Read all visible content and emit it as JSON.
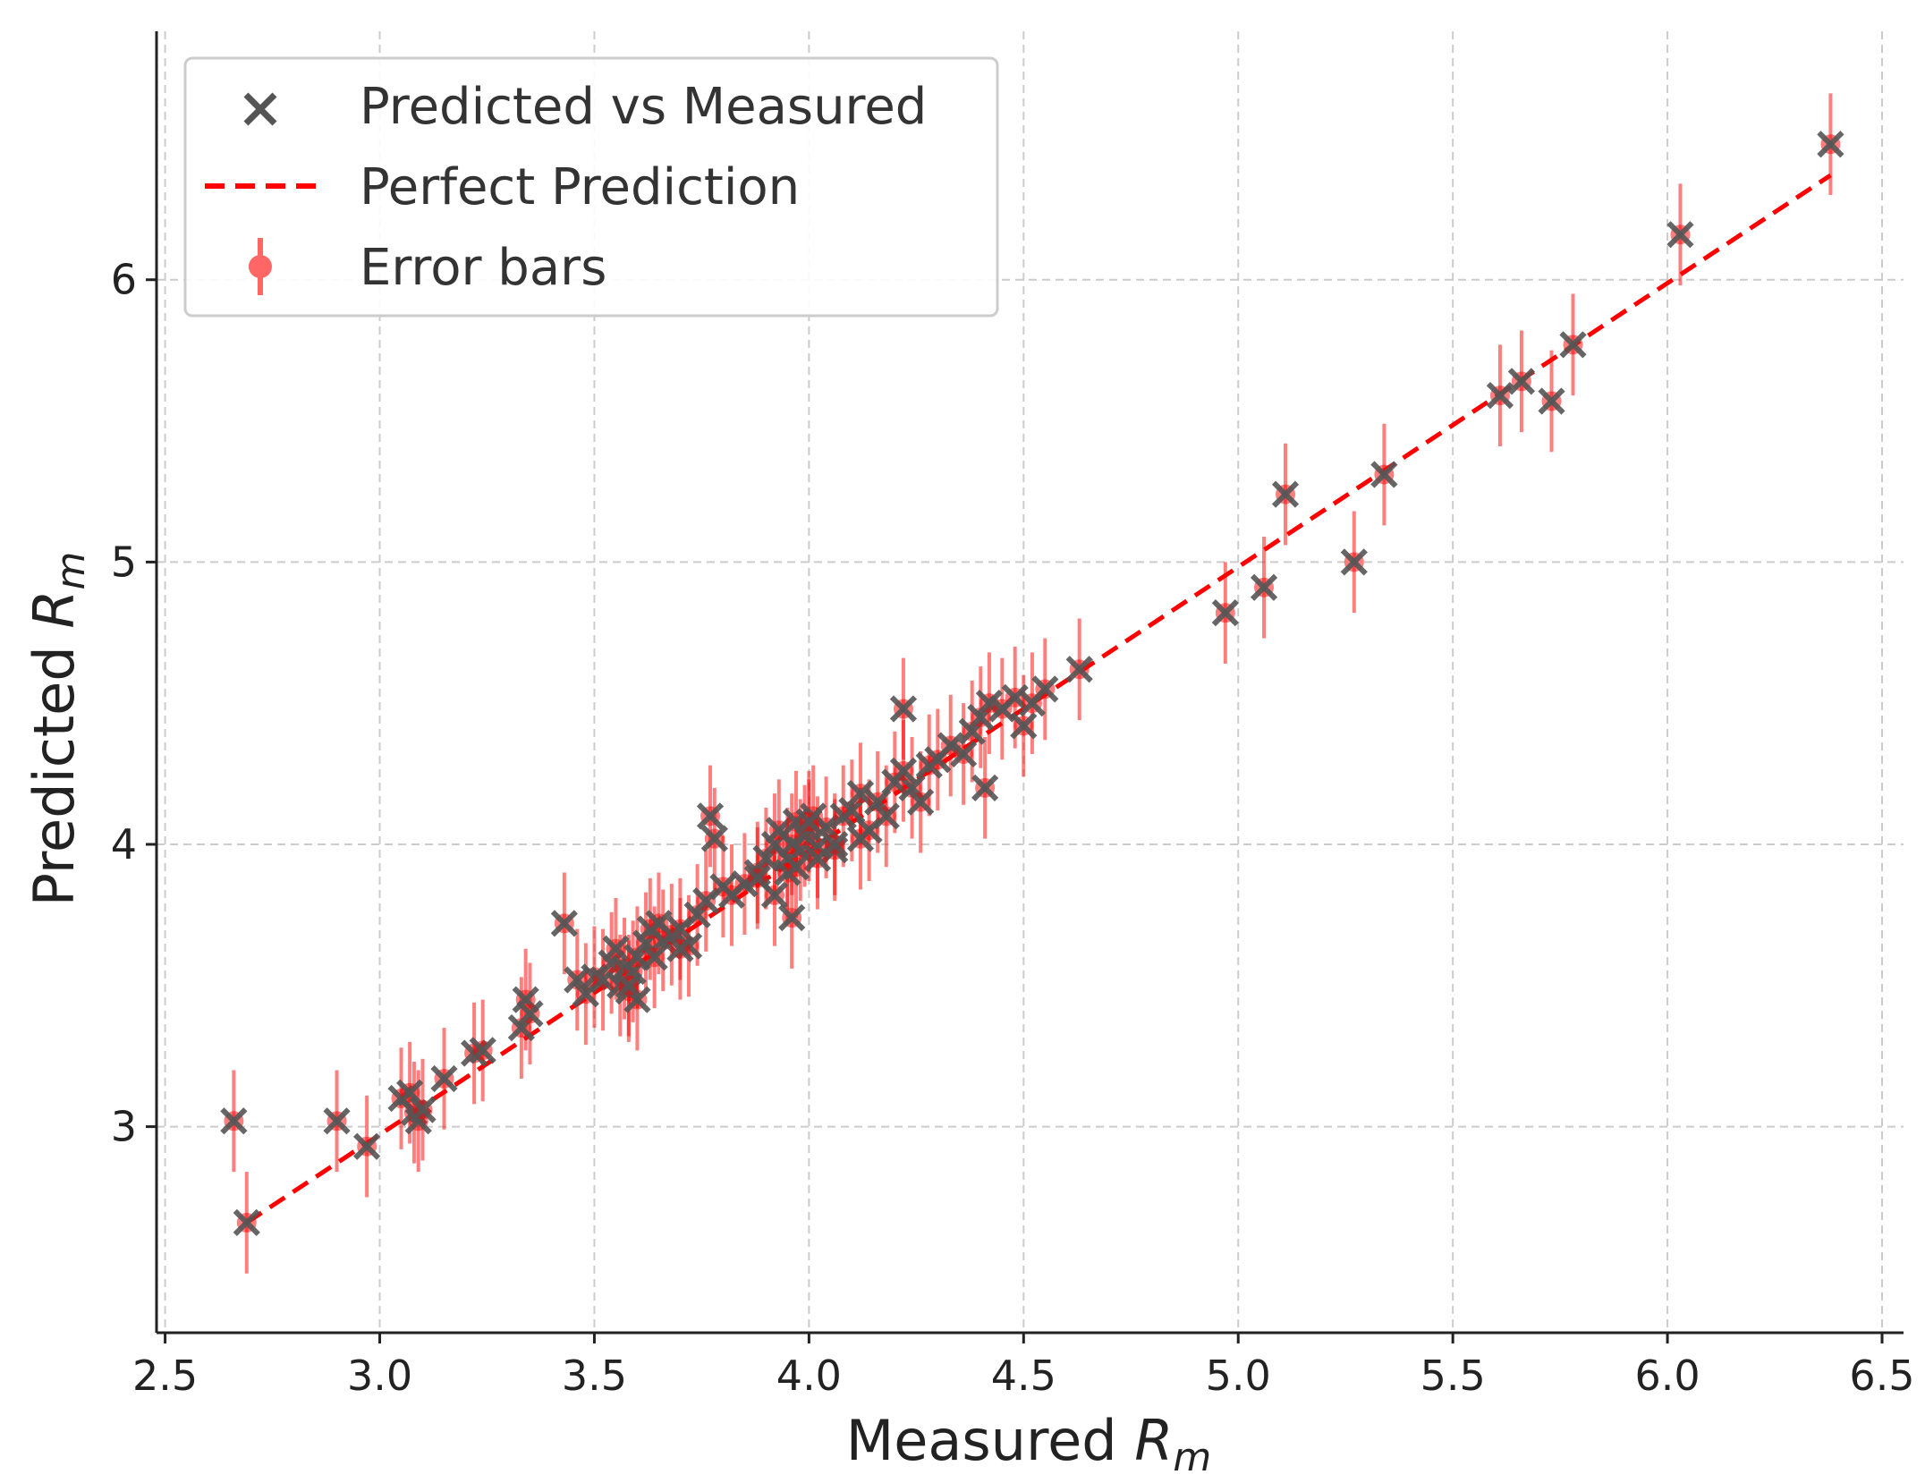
{
  "chart_data": {
    "type": "scatter",
    "title": "",
    "xlabel": "Measured",
    "ylabel": "Predicted",
    "label_symbol": "R",
    "label_subscript": "m",
    "xlim": [
      2.48,
      6.55
    ],
    "ylim": [
      2.27,
      6.88
    ],
    "xticks": [
      2.5,
      3.0,
      3.5,
      4.0,
      4.5,
      5.0,
      5.5,
      6.0,
      6.5
    ],
    "xtick_labels": [
      "2.5",
      "3.0",
      "3.5",
      "4.0",
      "4.5",
      "5.0",
      "5.5",
      "6.0",
      "6.5"
    ],
    "yticks": [
      3,
      4,
      5,
      6
    ],
    "ytick_labels": [
      "3",
      "4",
      "5",
      "6"
    ],
    "grid": true,
    "legend_position": "top-left",
    "legend": [
      {
        "name": "Predicted vs Measured",
        "marker": "x",
        "color": "#555555"
      },
      {
        "name": "Perfect Prediction",
        "marker": "dashed-line",
        "color": "#ff0000"
      },
      {
        "name": "Error bars",
        "marker": "errorbar",
        "color": "#ff6666"
      }
    ],
    "perfect_line": {
      "x": [
        2.69,
        6.38
      ],
      "y": [
        2.66,
        6.37
      ]
    },
    "error_half_width": 0.18,
    "series": [
      {
        "name": "Predicted vs Measured",
        "x": [
          2.66,
          2.69,
          2.9,
          2.97,
          3.05,
          3.07,
          3.08,
          3.09,
          3.1,
          3.15,
          3.22,
          3.24,
          3.33,
          3.34,
          3.35,
          3.43,
          3.46,
          3.48,
          3.5,
          3.52,
          3.54,
          3.55,
          3.56,
          3.57,
          3.58,
          3.59,
          3.6,
          3.62,
          3.63,
          3.65,
          3.66,
          3.68,
          3.7,
          3.72,
          3.74,
          3.76,
          3.77,
          3.78,
          3.8,
          3.82,
          3.85,
          3.88,
          3.9,
          3.92,
          3.93,
          3.95,
          3.96,
          3.97,
          3.98,
          3.99,
          4.0,
          4.01,
          4.02,
          4.04,
          4.06,
          4.08,
          4.1,
          4.12,
          4.14,
          4.16,
          4.18,
          4.2,
          4.22,
          4.24,
          4.26,
          4.28,
          4.3,
          4.33,
          4.36,
          4.38,
          4.4,
          4.42,
          4.45,
          4.48,
          4.5,
          4.52,
          4.55,
          4.63,
          4.97,
          5.06,
          5.11,
          5.27,
          5.34,
          5.61,
          5.66,
          5.73,
          5.78,
          6.03,
          6.38,
          3.92,
          3.95,
          4.02,
          4.06,
          4.12,
          3.88,
          3.97,
          4.0,
          3.6,
          3.58,
          3.64,
          3.7,
          4.22,
          4.41,
          3.96
        ],
        "y": [
          3.02,
          2.66,
          3.02,
          2.93,
          3.1,
          3.12,
          3.05,
          3.02,
          3.06,
          3.17,
          3.26,
          3.27,
          3.35,
          3.45,
          3.4,
          3.72,
          3.52,
          3.47,
          3.53,
          3.52,
          3.58,
          3.63,
          3.5,
          3.56,
          3.48,
          3.55,
          3.6,
          3.65,
          3.7,
          3.72,
          3.66,
          3.68,
          3.7,
          3.64,
          3.75,
          3.8,
          4.1,
          4.02,
          3.85,
          3.82,
          3.86,
          3.9,
          3.95,
          4.0,
          4.05,
          3.95,
          4.0,
          4.08,
          3.98,
          4.03,
          4.05,
          4.1,
          3.99,
          4.06,
          3.98,
          4.1,
          4.12,
          4.18,
          4.05,
          4.15,
          4.1,
          4.22,
          4.48,
          4.2,
          4.15,
          4.28,
          4.3,
          4.35,
          4.32,
          4.4,
          4.45,
          4.5,
          4.48,
          4.52,
          4.42,
          4.5,
          4.55,
          4.62,
          4.82,
          4.91,
          5.24,
          5.0,
          5.31,
          5.59,
          5.64,
          5.57,
          5.77,
          6.16,
          6.48,
          3.82,
          3.9,
          3.95,
          4.0,
          4.02,
          3.88,
          3.92,
          4.08,
          3.45,
          3.5,
          3.6,
          3.63,
          4.26,
          4.2,
          3.74
        ]
      }
    ]
  }
}
